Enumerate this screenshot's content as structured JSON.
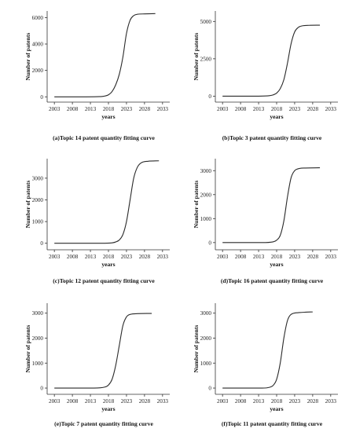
{
  "figure": {
    "panels": [
      {
        "caption": "(a)Topic 14 patent quantity fitting curve"
      },
      {
        "caption": "(b)Topic 3 patent quantity fitting curve"
      },
      {
        "caption": "(c)Topic 12 patent quantity fitting curve"
      },
      {
        "caption": "(d)Topic 16 patent quantity fitting curve"
      },
      {
        "caption": "(e)Topic 7 patent quantity fitting curve"
      },
      {
        "caption": "(f)Topic 11 patent quantity fitting curve"
      }
    ]
  },
  "chart_data": [
    {
      "type": "line",
      "caption": "(a)Topic 14 patent quantity fitting curve",
      "xlabel": "years",
      "ylabel": "Number of patents",
      "xlim": [
        2001,
        2035
      ],
      "ylim": [
        -400,
        6500
      ],
      "xticks": [
        2003,
        2008,
        2013,
        2018,
        2023,
        2028,
        2033
      ],
      "yticks": [
        0,
        2000,
        4000,
        6000
      ],
      "series": [
        {
          "x": [
            2003,
            2012,
            2016,
            2017,
            2018,
            2019,
            2020,
            2021,
            2022,
            2023,
            2024,
            2025,
            2026,
            2028,
            2031
          ],
          "y": [
            0,
            0,
            20,
            60,
            150,
            400,
            900,
            1700,
            3000,
            4800,
            5800,
            6150,
            6250,
            6280,
            6300
          ]
        }
      ]
    },
    {
      "type": "line",
      "caption": "(b)Topic 3 patent quantity fitting curve",
      "xlabel": "years",
      "ylabel": "Number of patents",
      "xlim": [
        2001,
        2035
      ],
      "ylim": [
        -400,
        5700
      ],
      "xticks": [
        2003,
        2008,
        2013,
        2018,
        2023,
        2028,
        2033
      ],
      "yticks": [
        0,
        2500,
        5000
      ],
      "series": [
        {
          "x": [
            2003,
            2013,
            2016,
            2017,
            2018,
            2019,
            2020,
            2021,
            2022,
            2023,
            2024,
            2025,
            2027,
            2030
          ],
          "y": [
            0,
            0,
            30,
            80,
            200,
            500,
            1100,
            2200,
            3500,
            4300,
            4600,
            4700,
            4740,
            4750
          ]
        }
      ]
    },
    {
      "type": "line",
      "caption": "(c)Topic 12 patent quantity fitting curve",
      "xlabel": "years",
      "ylabel": "Number of patents",
      "xlim": [
        2001,
        2035
      ],
      "ylim": [
        -300,
        3900
      ],
      "xticks": [
        2003,
        2008,
        2013,
        2018,
        2023,
        2028,
        2033
      ],
      "yticks": [
        0,
        1000,
        2000,
        3000
      ],
      "series": [
        {
          "x": [
            2003,
            2016,
            2019,
            2020,
            2021,
            2022,
            2023,
            2024,
            2025,
            2026,
            2027,
            2029,
            2032
          ],
          "y": [
            0,
            0,
            20,
            60,
            150,
            400,
            1000,
            2000,
            3000,
            3500,
            3700,
            3780,
            3800
          ]
        }
      ]
    },
    {
      "type": "line",
      "caption": "(d)Topic 16 patent quantity fitting curve",
      "xlabel": "years",
      "ylabel": "Number of patents",
      "xlim": [
        2001,
        2035
      ],
      "ylim": [
        -300,
        3500
      ],
      "xticks": [
        2003,
        2008,
        2013,
        2018,
        2023,
        2028,
        2033
      ],
      "yticks": [
        0,
        1000,
        2000,
        3000
      ],
      "series": [
        {
          "x": [
            2003,
            2014,
            2017,
            2018,
            2019,
            2020,
            2021,
            2022,
            2023,
            2024,
            2026,
            2030
          ],
          "y": [
            0,
            0,
            30,
            100,
            300,
            900,
            1900,
            2700,
            3000,
            3080,
            3110,
            3120
          ]
        }
      ]
    },
    {
      "type": "line",
      "caption": "(e)Topic 7 patent quantity fitting curve",
      "xlabel": "years",
      "ylabel": "Number of patents",
      "xlim": [
        2001,
        2035
      ],
      "ylim": [
        -250,
        3400
      ],
      "xticks": [
        2003,
        2008,
        2013,
        2018,
        2023,
        2028,
        2033
      ],
      "yticks": [
        0,
        1000,
        2000,
        3000
      ],
      "series": [
        {
          "x": [
            2003,
            2014,
            2017,
            2018,
            2019,
            2020,
            2021,
            2022,
            2023,
            2024,
            2026,
            2030
          ],
          "y": [
            0,
            0,
            40,
            120,
            350,
            900,
            1700,
            2500,
            2850,
            2950,
            2980,
            2990
          ]
        }
      ]
    },
    {
      "type": "line",
      "caption": "(f)Topic 11 patent quantity fitting curve",
      "xlabel": "years",
      "ylabel": "Number of patents",
      "xlim": [
        2001,
        2035
      ],
      "ylim": [
        -250,
        3400
      ],
      "xticks": [
        2003,
        2008,
        2013,
        2018,
        2023,
        2028,
        2033
      ],
      "yticks": [
        0,
        1000,
        2000,
        3000
      ],
      "series": [
        {
          "x": [
            2003,
            2014,
            2016,
            2017,
            2018,
            2019,
            2020,
            2021,
            2022,
            2024,
            2026,
            2028
          ],
          "y": [
            0,
            0,
            30,
            100,
            350,
            1000,
            2000,
            2700,
            2950,
            3020,
            3040,
            3050
          ]
        }
      ]
    }
  ]
}
